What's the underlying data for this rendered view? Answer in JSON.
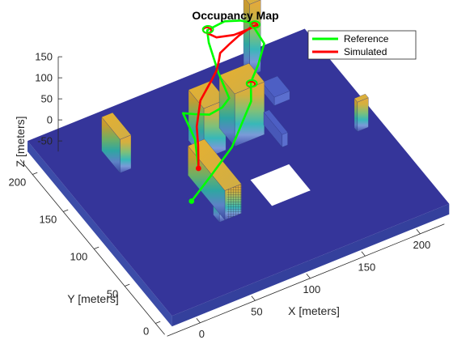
{
  "chart_data": {
    "type": "3d-occupancy",
    "title": "Occupancy Map",
    "xlabel": "X [meters]",
    "ylabel": "Y [meters]",
    "zlabel": "Z [meters]",
    "xlim": [
      -30,
      230
    ],
    "ylim": [
      -15,
      230
    ],
    "zlim": [
      -75,
      150
    ],
    "x_ticks": [
      "0",
      "50",
      "100",
      "150",
      "200"
    ],
    "y_ticks": [
      "0",
      "50",
      "100",
      "150",
      "200"
    ],
    "z_ticks": [
      "150",
      "100",
      "50",
      "0",
      "-50"
    ],
    "legend": {
      "position": "top-right",
      "entries": [
        {
          "name": "Reference",
          "color": "#00ff00"
        },
        {
          "name": "Simulated",
          "color": "#ff0000"
        }
      ]
    },
    "grid": false,
    "colors": {
      "ground": "#35359a",
      "base_low": "#4a5aa8",
      "mid": "#2a9d8f",
      "high": "#e0b030",
      "reference": "#00ff00",
      "simulated": "#ff0000"
    },
    "obstacles": [
      {
        "x": [
          158,
          168
        ],
        "y": [
          195,
          205
        ],
        "z": [
          -50,
          120
        ]
      },
      {
        "x": [
          15,
          25
        ],
        "y": [
          150,
          180
        ],
        "z": [
          -50,
          30
        ]
      },
      {
        "x": [
          55,
          70
        ],
        "y": [
          60,
          70
        ],
        "z": [
          -50,
          20
        ]
      },
      {
        "x": [
          60,
          75
        ],
        "y": [
          60,
          120
        ],
        "z": [
          -50,
          20
        ]
      },
      {
        "x": [
          80,
          100
        ],
        "y": [
          130,
          155
        ],
        "z": [
          -50,
          70
        ]
      },
      {
        "x": [
          108,
          135
        ],
        "y": [
          130,
          155
        ],
        "z": [
          -50,
          75
        ]
      },
      {
        "x": [
          158,
          172
        ],
        "y": [
          155,
          175
        ],
        "z": [
          -50,
          -30
        ]
      },
      {
        "x": [
          140,
          145
        ],
        "y": [
          110,
          140
        ],
        "z": [
          -50,
          -20
        ]
      },
      {
        "x": [
          200,
          210
        ],
        "y": [
          95,
          100
        ],
        "z": [
          -50,
          20
        ]
      }
    ],
    "hole": {
      "x": [
        100,
        135
      ],
      "y": [
        55,
        90
      ]
    },
    "series": [
      {
        "name": "Reference",
        "points": [
          [
            42,
            82,
            -25
          ],
          [
            70,
            100,
            -25
          ],
          [
            100,
            120,
            -25
          ],
          [
            128,
            139,
            20
          ],
          [
            135,
            152,
            35
          ],
          [
            140,
            156,
            40
          ],
          [
            145,
            158,
            55
          ],
          [
            160,
            175,
            60
          ],
          [
            158,
            193,
            80
          ],
          [
            150,
            196,
            88
          ],
          [
            138,
            200,
            92
          ],
          [
            121,
            198,
            92
          ],
          [
            118,
            190,
            80
          ],
          [
            110,
            160,
            70
          ],
          [
            103,
            130,
            70
          ],
          [
            95,
            127,
            62
          ],
          [
            85,
            130,
            50
          ],
          [
            80,
            145,
            30
          ],
          [
            75,
            155,
            20
          ],
          [
            72,
            130,
            5
          ],
          [
            64,
            110,
            -20
          ]
        ]
      },
      {
        "name": "Simulated",
        "points": [
          [
            64,
            110,
            -20
          ],
          [
            72,
            125,
            0
          ],
          [
            78,
            138,
            15
          ],
          [
            88,
            150,
            45
          ],
          [
            103,
            158,
            65
          ],
          [
            110,
            163,
            70
          ],
          [
            116,
            170,
            75
          ],
          [
            120,
            175,
            80
          ],
          [
            131,
            180,
            80
          ],
          [
            142,
            184,
            82
          ],
          [
            155,
            186,
            86
          ],
          [
            158,
            185,
            88
          ],
          [
            152,
            184,
            88
          ],
          [
            138,
            185,
            86
          ],
          [
            125,
            190,
            85
          ],
          [
            120,
            196,
            90
          ]
        ]
      }
    ]
  }
}
